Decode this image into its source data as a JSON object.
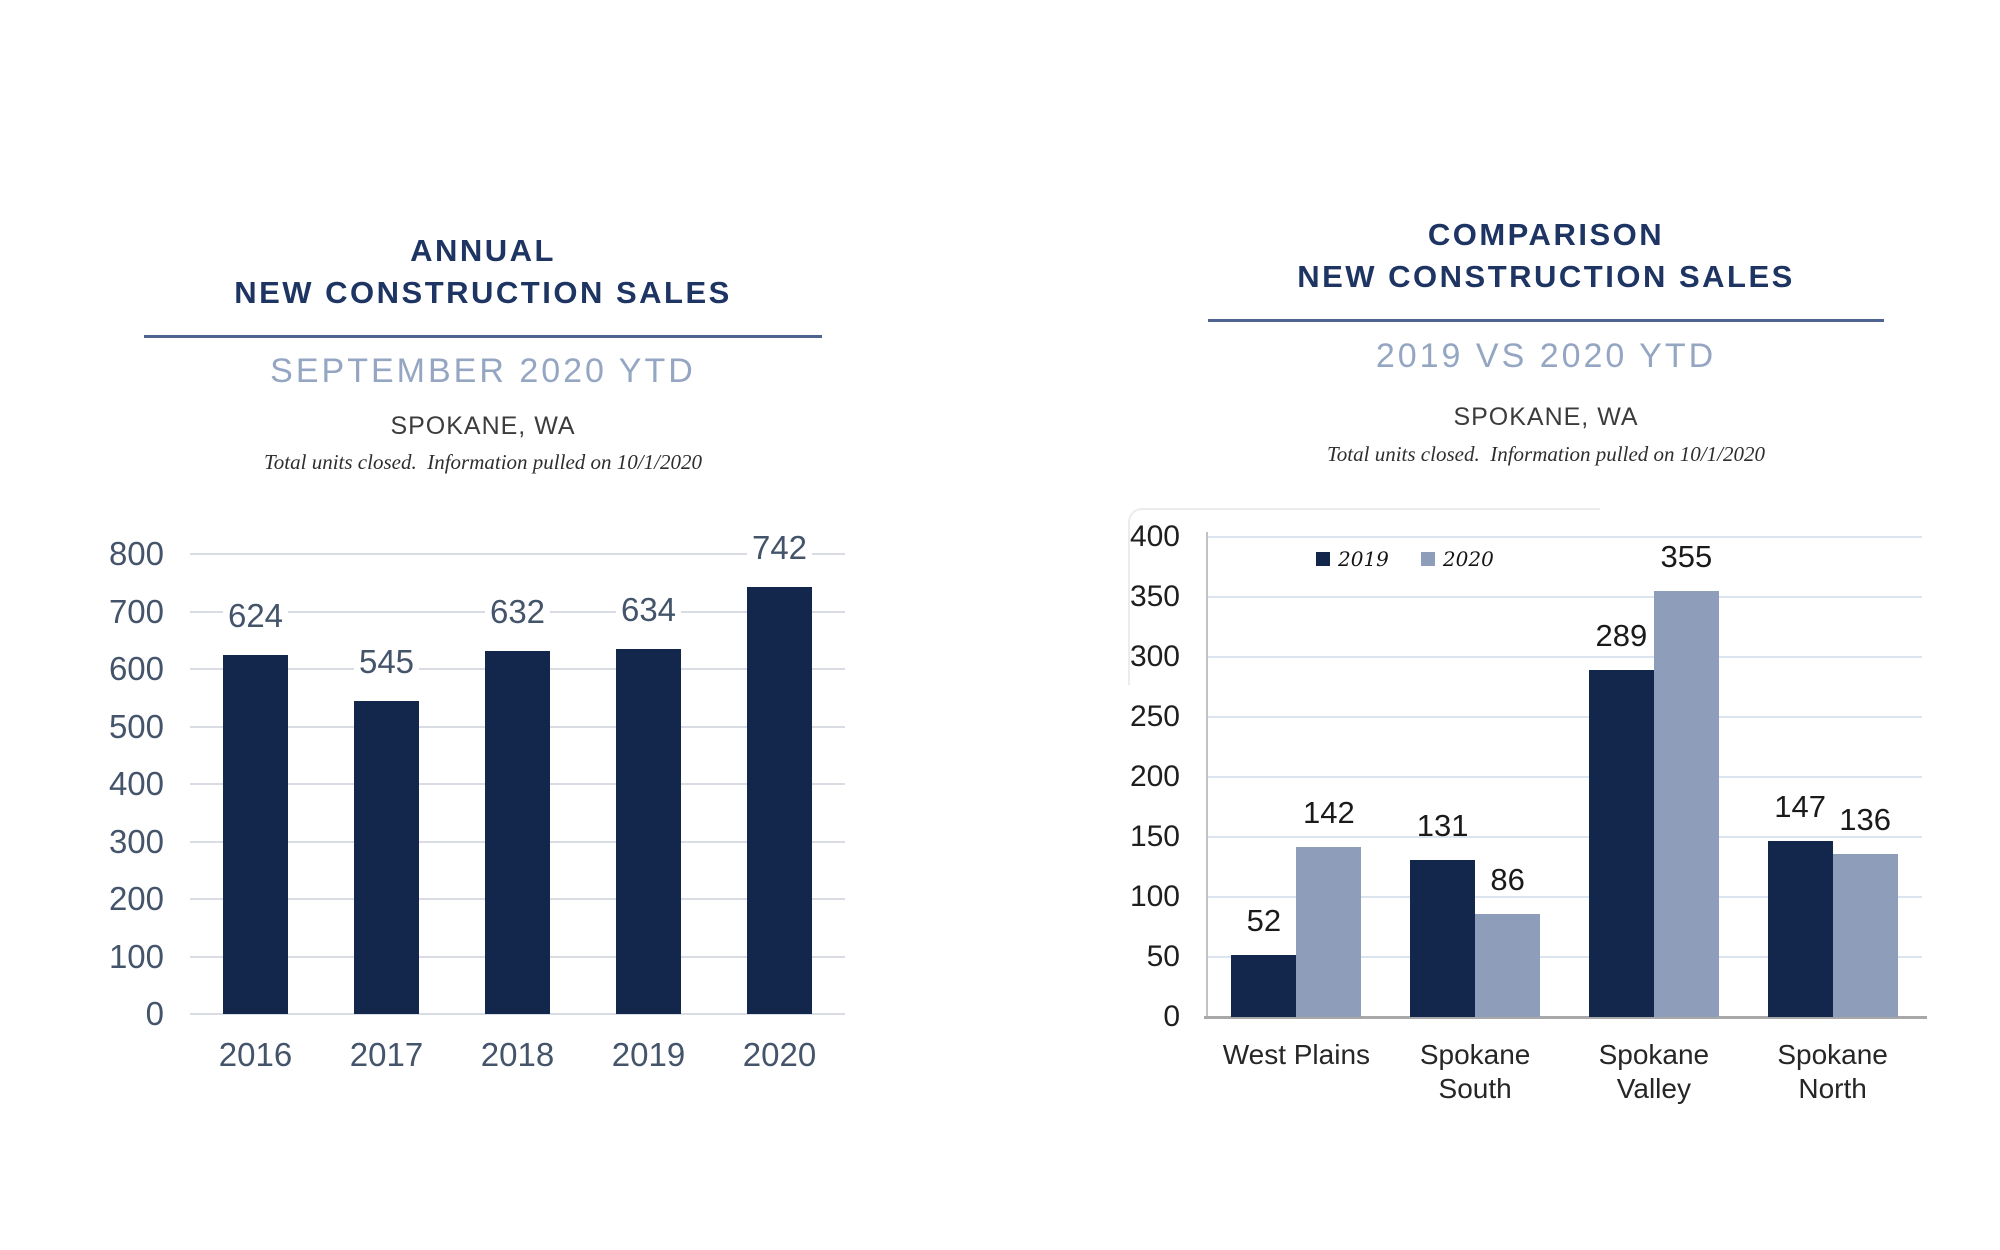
{
  "page": {
    "background": "#FFFFFF"
  },
  "chart_data": [
    {
      "type": "bar",
      "title_lines": [
        "ANNUAL",
        "NEW CONSTRUCTION SALES"
      ],
      "subtitle": "SEPTEMBER 2020 YTD",
      "location": "SPOKANE, WA",
      "note": "Total units closed.  Information pulled on 10/1/2020",
      "categories": [
        "2016",
        "2017",
        "2018",
        "2019",
        "2020"
      ],
      "values": [
        624,
        545,
        632,
        634,
        742
      ],
      "xlabel": "",
      "ylabel": "",
      "ylim": [
        0,
        800
      ],
      "ytick_step": 100,
      "grid": true,
      "legend_position": "none",
      "colors": {
        "bar": "#13274D",
        "axis_text": "#44546A",
        "data_label": "#44546A",
        "gridline": "#D9DDE3"
      }
    },
    {
      "type": "bar",
      "grouped": true,
      "title_lines": [
        "COMPARISON",
        "NEW CONSTRUCTION SALES"
      ],
      "subtitle": "2019 VS 2020 YTD",
      "location": "SPOKANE, WA",
      "note": "Total units closed.  Information pulled on 10/1/2020",
      "categories": [
        "West Plains",
        "Spokane South",
        "Spokane Valley",
        "Spokane North"
      ],
      "category_lines": [
        [
          "West Plains"
        ],
        [
          "Spokane",
          "South"
        ],
        [
          "Spokane",
          "Valley"
        ],
        [
          "Spokane",
          "North"
        ]
      ],
      "series": [
        {
          "name": "2019",
          "color": "#13274D",
          "values": [
            52,
            131,
            289,
            147
          ]
        },
        {
          "name": "2020",
          "color": "#8E9DB9",
          "values": [
            142,
            86,
            355,
            136
          ]
        }
      ],
      "xlabel": "",
      "ylabel": "",
      "ylim": [
        0,
        400
      ],
      "ytick_step": 50,
      "grid": true,
      "legend_position": "top-inside",
      "colors": {
        "axis_text": "#1E1E1E",
        "data_label": "#1A1A1A",
        "gridline": "#DCE4EF",
        "x_axis_line": "#A8A8A8",
        "y_axis_line": "#C2C2C2"
      }
    }
  ]
}
